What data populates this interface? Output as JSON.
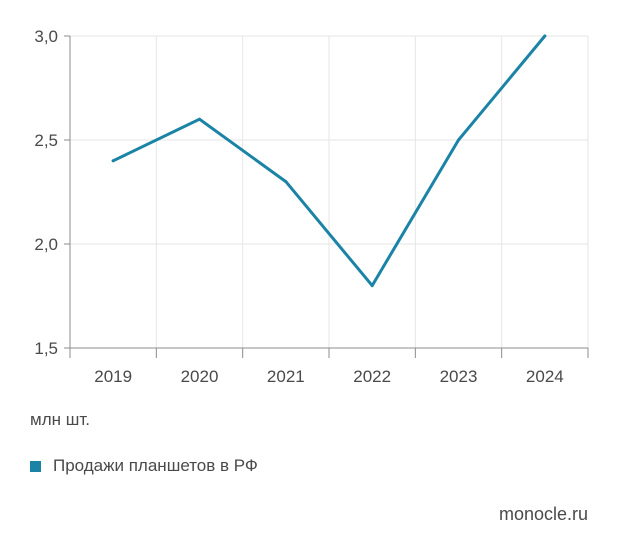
{
  "chart_data": {
    "type": "line",
    "categories": [
      "2019",
      "2020",
      "2021",
      "2022",
      "2023",
      "2024"
    ],
    "series": [
      {
        "name": "Продажи планшетов в РФ",
        "values": [
          2.4,
          2.6,
          2.3,
          1.8,
          2.5,
          3.0
        ]
      }
    ],
    "ylim": [
      1.5,
      3.0
    ],
    "yticks": [
      "1,5",
      "2,0",
      "2,5",
      "3,0"
    ],
    "ytick_values": [
      1.5,
      2.0,
      2.5,
      3.0
    ],
    "grid": true,
    "unit_label": "млн шт.",
    "legend_position": "bottom-left",
    "colors": {
      "line": "#1a83a6",
      "grid": "#e6e6e6",
      "axis": "#8c8c8c"
    }
  },
  "source": "monocle.ru"
}
